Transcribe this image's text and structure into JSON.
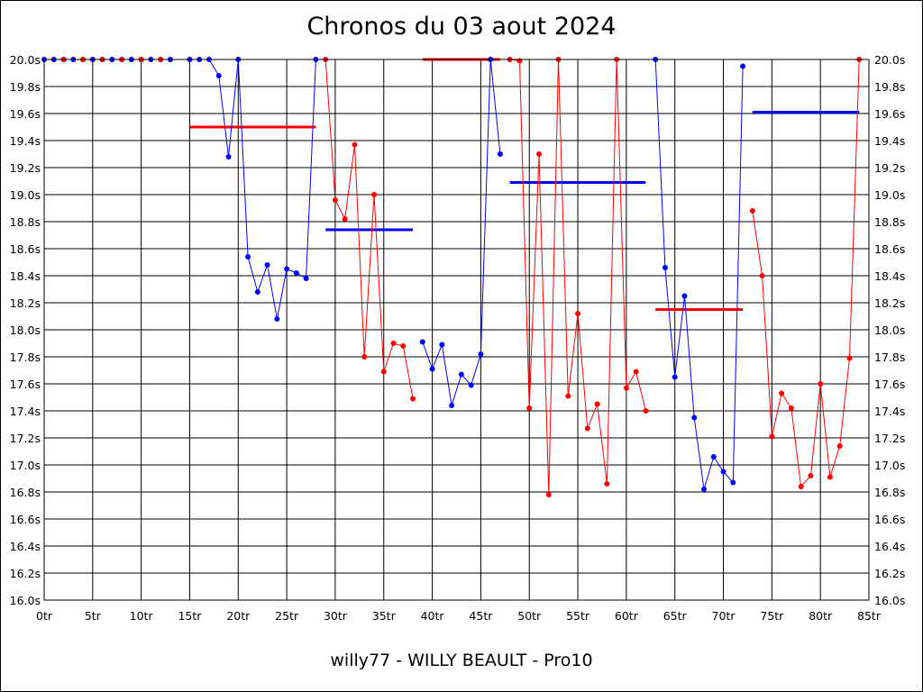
{
  "chart_data": {
    "type": "line",
    "title": "Chronos du 03 aout 2024",
    "footer": "willy77 - WILLY BEAULT - Pro10",
    "xlim": [
      0,
      85
    ],
    "ylim": [
      16.0,
      20.0
    ],
    "x_ticks": [
      0,
      5,
      10,
      15,
      20,
      25,
      30,
      35,
      40,
      45,
      50,
      55,
      60,
      65,
      70,
      75,
      80,
      85
    ],
    "x_tick_labels": [
      "0tr",
      "5tr",
      "10tr",
      "15tr",
      "20tr",
      "25tr",
      "30tr",
      "35tr",
      "40tr",
      "45tr",
      "50tr",
      "55tr",
      "60tr",
      "65tr",
      "70tr",
      "75tr",
      "80tr",
      "85tr"
    ],
    "y_ticks": [
      16.0,
      16.2,
      16.4,
      16.6,
      16.8,
      17.0,
      17.2,
      17.4,
      17.6,
      17.8,
      18.0,
      18.2,
      18.4,
      18.6,
      18.8,
      19.0,
      19.2,
      19.4,
      19.6,
      19.8,
      20.0
    ],
    "y_tick_labels": [
      "16.0s",
      "16.2s",
      "16.4s",
      "16.6s",
      "16.8s",
      "17.0s",
      "17.2s",
      "17.4s",
      "17.6s",
      "17.8s",
      "18.0s",
      "18.2s",
      "18.4s",
      "18.6s",
      "18.8s",
      "19.0s",
      "19.2s",
      "19.4s",
      "19.6s",
      "19.8s",
      "20.0s"
    ],
    "grid": true,
    "colors": {
      "blue": "#0000ff",
      "red": "#ff0000"
    },
    "segments": [
      {
        "color": "blue",
        "points": [
          [
            0,
            20.0
          ],
          [
            1,
            20.0
          ],
          [
            2,
            20.0
          ],
          [
            3,
            20.0
          ],
          [
            4,
            20.0
          ],
          [
            5,
            20.0
          ],
          [
            6,
            20.0
          ],
          [
            7,
            20.0
          ],
          [
            8,
            20.0
          ],
          [
            9,
            20.0
          ],
          [
            10,
            20.0
          ],
          [
            11,
            20.0
          ],
          [
            12,
            20.0
          ],
          [
            13,
            20.0
          ]
        ]
      },
      {
        "color": "blue",
        "points": [
          [
            15,
            20.0
          ],
          [
            16,
            20.0
          ],
          [
            17,
            20.0
          ],
          [
            18,
            19.88
          ],
          [
            19,
            19.28
          ],
          [
            20,
            20.0
          ],
          [
            21,
            18.54
          ],
          [
            22,
            18.28
          ],
          [
            23,
            18.48
          ],
          [
            24,
            18.08
          ],
          [
            25,
            18.45
          ],
          [
            26,
            18.42
          ],
          [
            27,
            18.38
          ],
          [
            28,
            20.0
          ]
        ]
      },
      {
        "color": "red",
        "points": [
          [
            29,
            20.0
          ],
          [
            30,
            18.96
          ],
          [
            31,
            18.82
          ],
          [
            32,
            19.37
          ],
          [
            33,
            17.8
          ],
          [
            34,
            19.0
          ],
          [
            35,
            17.69
          ],
          [
            36,
            17.9
          ],
          [
            37,
            17.88
          ],
          [
            38,
            17.49
          ]
        ]
      },
      {
        "color": "blue",
        "points": [
          [
            39,
            17.91
          ],
          [
            40,
            17.71
          ],
          [
            41,
            17.89
          ],
          [
            42,
            17.44
          ],
          [
            43,
            17.67
          ],
          [
            44,
            17.59
          ],
          [
            45,
            17.82
          ],
          [
            46,
            20.0
          ],
          [
            47,
            19.3
          ]
        ]
      },
      {
        "color": "red",
        "points": [
          [
            48,
            20.0
          ],
          [
            49,
            19.99
          ],
          [
            50,
            17.42
          ],
          [
            51,
            19.3
          ],
          [
            52,
            16.78
          ],
          [
            53,
            20.0
          ],
          [
            54,
            17.51
          ],
          [
            55,
            18.12
          ],
          [
            56,
            17.27
          ],
          [
            57,
            17.45
          ],
          [
            58,
            16.86
          ],
          [
            59,
            20.0
          ],
          [
            60,
            17.57
          ],
          [
            61,
            17.69
          ],
          [
            62,
            17.4
          ]
        ]
      },
      {
        "color": "blue",
        "points": [
          [
            63,
            20.0
          ],
          [
            64,
            18.46
          ],
          [
            65,
            17.65
          ],
          [
            66,
            18.25
          ],
          [
            67,
            17.35
          ],
          [
            68,
            16.82
          ],
          [
            69,
            17.06
          ],
          [
            70,
            16.95
          ],
          [
            71,
            16.87
          ],
          [
            72,
            19.95
          ]
        ]
      },
      {
        "color": "red",
        "points": [
          [
            73,
            18.88
          ],
          [
            74,
            18.4
          ],
          [
            75,
            17.21
          ],
          [
            76,
            17.53
          ],
          [
            77,
            17.42
          ],
          [
            78,
            16.84
          ],
          [
            79,
            16.92
          ],
          [
            80,
            17.6
          ],
          [
            81,
            16.91
          ],
          [
            82,
            17.14
          ],
          [
            83,
            17.79
          ],
          [
            84,
            20.0
          ]
        ]
      }
    ],
    "red_dots_top": [
      2,
      4,
      6,
      8,
      10,
      12
    ],
    "averages": [
      {
        "color": "red",
        "from": 15,
        "to": 28,
        "value": 19.5
      },
      {
        "color": "blue",
        "from": 29,
        "to": 38,
        "value": 18.74
      },
      {
        "color": "red",
        "from": 39,
        "to": 47,
        "value": 20.0
      },
      {
        "color": "blue",
        "from": 48,
        "to": 62,
        "value": 19.09
      },
      {
        "color": "red",
        "from": 63,
        "to": 72,
        "value": 18.15
      },
      {
        "color": "blue",
        "from": 73,
        "to": 84,
        "value": 19.61
      }
    ]
  }
}
